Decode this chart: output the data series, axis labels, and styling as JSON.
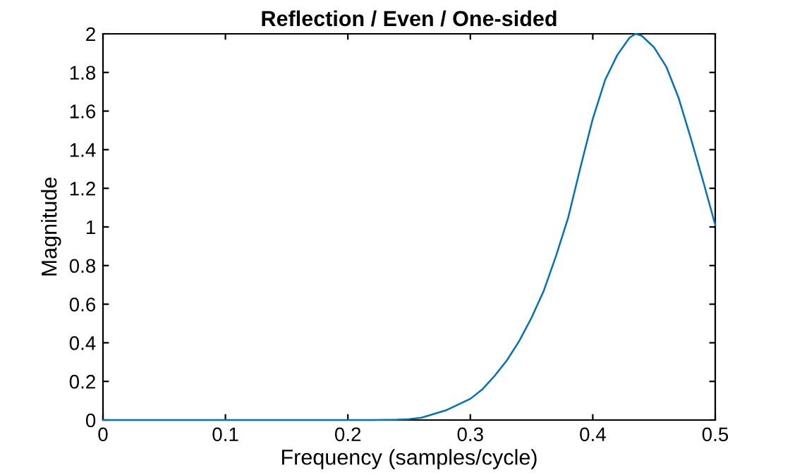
{
  "chart_data": {
    "type": "line",
    "title": "Reflection / Even / One-sided",
    "xlabel": "Frequency (samples/cycle)",
    "ylabel": "Magnitude",
    "x": [
      0,
      0.05,
      0.1,
      0.15,
      0.2,
      0.22,
      0.24,
      0.25,
      0.26,
      0.28,
      0.3,
      0.31,
      0.32,
      0.33,
      0.34,
      0.35,
      0.36,
      0.37,
      0.38,
      0.39,
      0.4,
      0.41,
      0.42,
      0.43,
      0.435,
      0.44,
      0.45,
      0.46,
      0.47,
      0.48,
      0.49,
      0.5
    ],
    "series": [
      {
        "color": "#0072bd",
        "values": [
          0,
          0,
          0,
          0,
          0,
          0,
          0.002,
          0.005,
          0.012,
          0.05,
          0.11,
          0.16,
          0.23,
          0.31,
          0.41,
          0.53,
          0.67,
          0.85,
          1.05,
          1.31,
          1.56,
          1.76,
          1.89,
          1.98,
          2.0,
          1.99,
          1.93,
          1.83,
          1.67,
          1.46,
          1.24,
          1.01
        ]
      }
    ],
    "xlim": [
      0,
      0.5
    ],
    "ylim": [
      0,
      2
    ],
    "xticks": [
      0,
      0.1,
      0.2,
      0.3,
      0.4,
      0.5
    ],
    "yticks": [
      0,
      0.2,
      0.4,
      0.6,
      0.8,
      1,
      1.2,
      1.4,
      1.6,
      1.8,
      2
    ],
    "grid": false,
    "line_style": "solid"
  }
}
